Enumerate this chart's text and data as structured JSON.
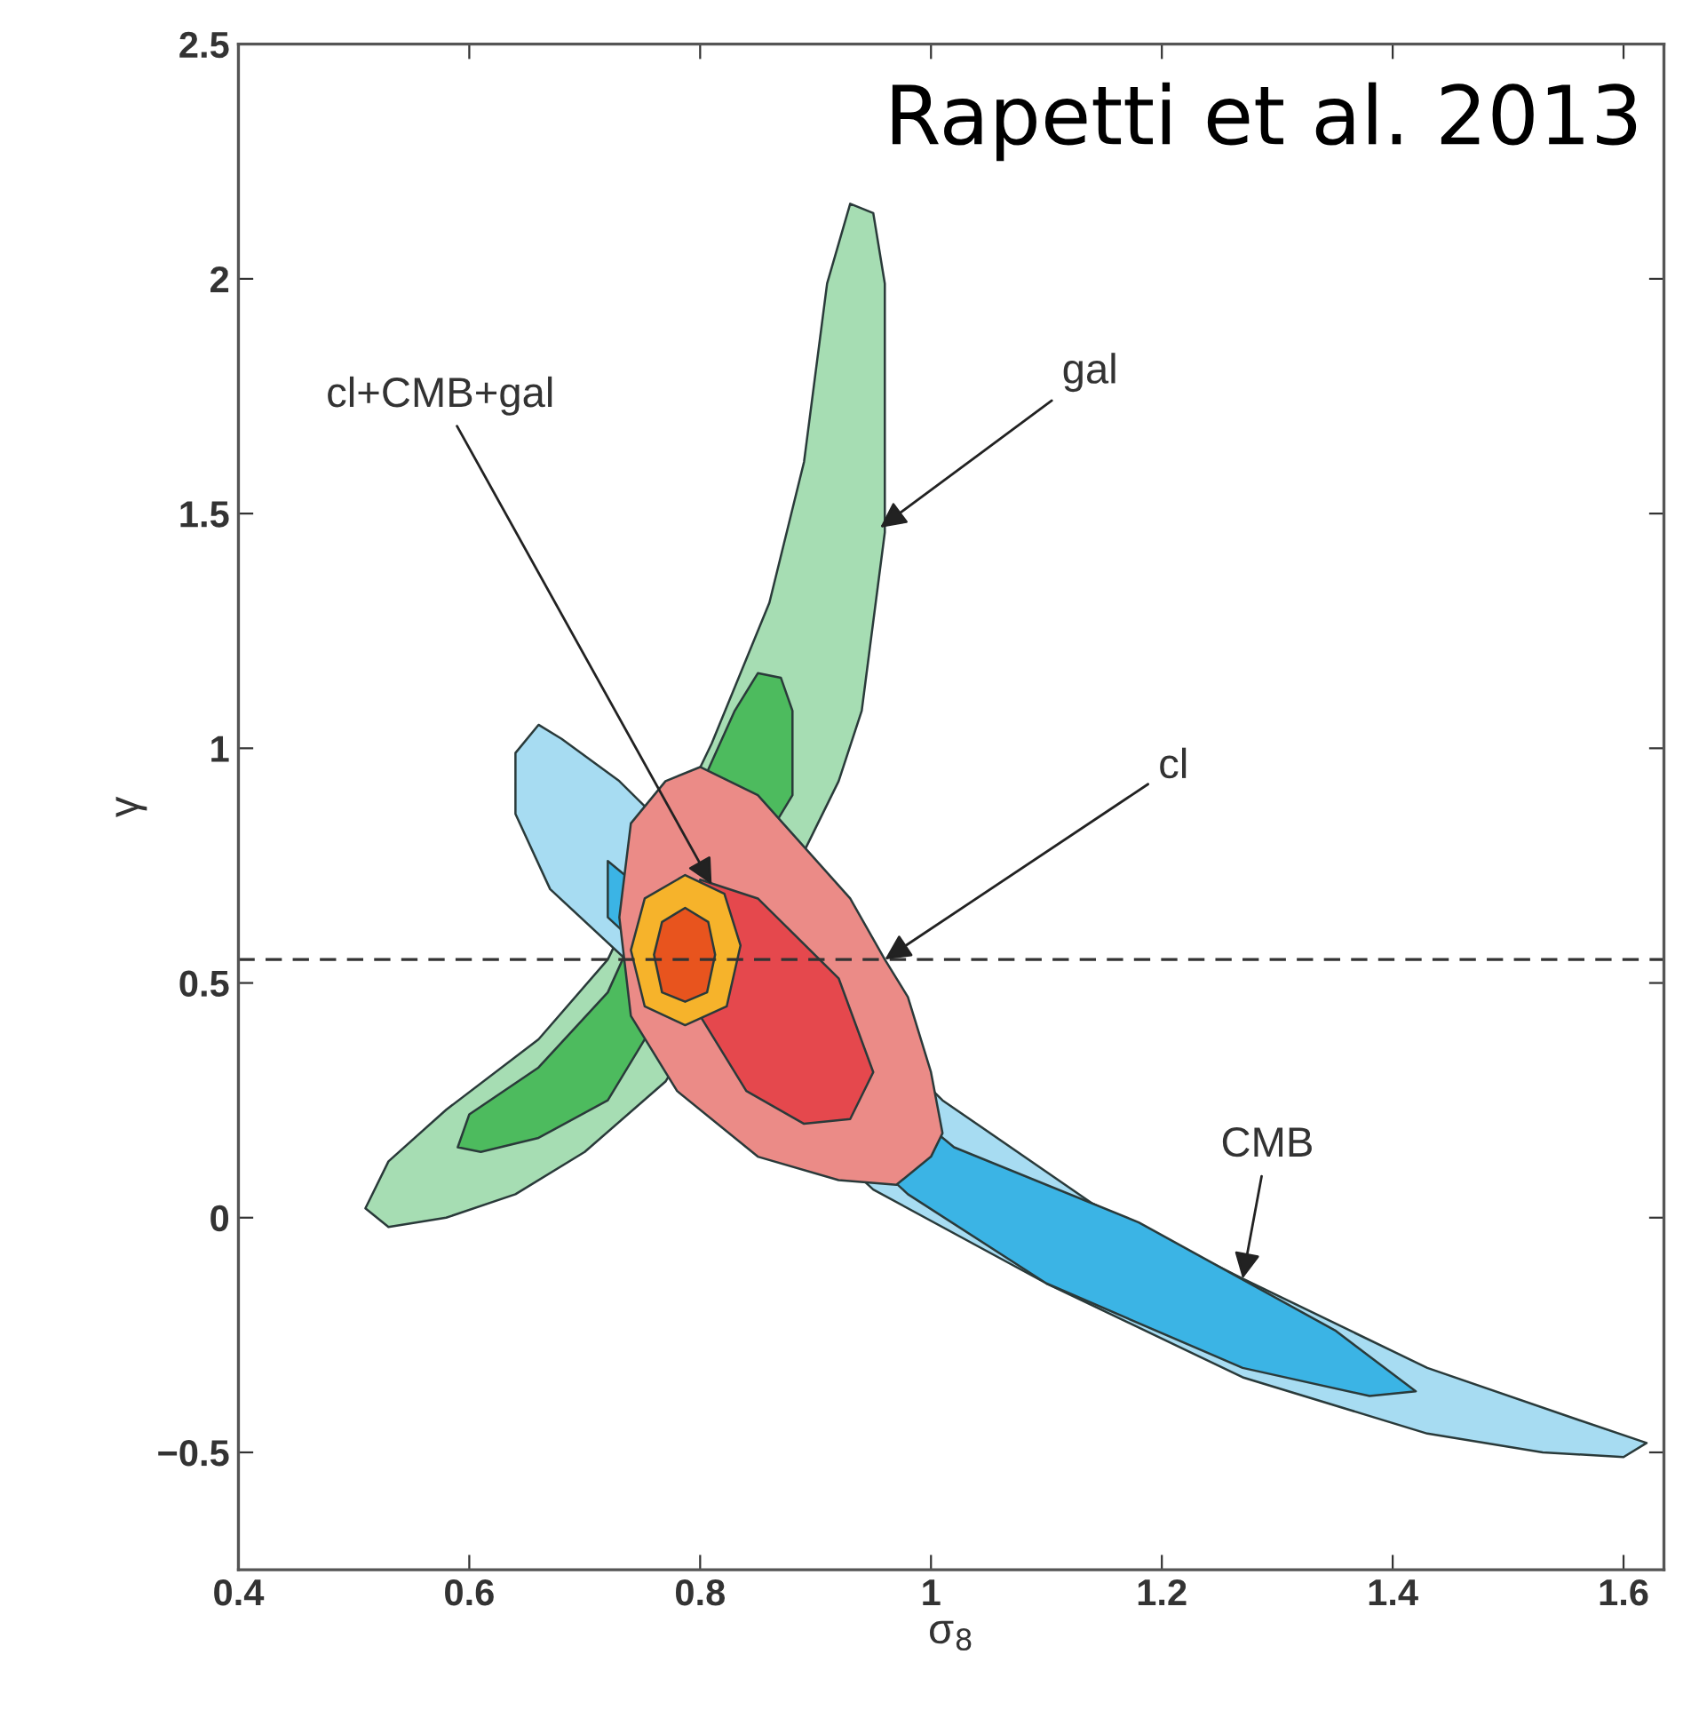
{
  "chart_data": {
    "type": "area",
    "xlabel": "σ$_{8}$",
    "ylabel": "γ",
    "xlim": [
      0.4,
      1.635
    ],
    "ylim": [
      -0.75,
      2.5
    ],
    "xticks": [
      0.4,
      0.6,
      0.8,
      1,
      1.2,
      1.4,
      1.6
    ],
    "yticks": [
      {
        "value": -0.5,
        "label": "−0.5"
      },
      0,
      0.5,
      1,
      1.5,
      2,
      2.5
    ],
    "grid": false,
    "legend": false,
    "series": [
      {
        "color": "#a6ddb3",
        "x": [
          0.93,
          0.95,
          0.96,
          0.96,
          0.96,
          0.95,
          0.94,
          0.92,
          0.89,
          null,
          null,
          0.77,
          0.7,
          0.64,
          0.58,
          0.53,
          0.51,
          0.53,
          0.58,
          0.66,
          0.72,
          null,
          0.81,
          0.86,
          0.89,
          0.91
        ],
        "values": [
          2.16,
          2.14,
          1.99,
          1.73,
          1.46,
          1.27,
          1.08,
          0.93,
          0.78,
          null,
          null,
          0.29,
          0.14,
          0.05,
          0.0,
          -0.02,
          0.02,
          0.12,
          0.23,
          0.38,
          0.55,
          null,
          1.01,
          1.31,
          1.61,
          1.99
        ]
      },
      {
        "color": "#4dbb5e",
        "x": [
          0.85,
          0.87,
          0.88,
          0.88,
          null,
          null,
          null,
          0.72,
          0.66,
          0.61,
          0.59,
          0.6,
          0.66,
          0.72,
          null,
          null,
          0.83
        ],
        "values": [
          1.16,
          1.15,
          1.08,
          0.9,
          null,
          null,
          null,
          0.25,
          0.17,
          0.14,
          0.15,
          0.22,
          0.32,
          0.48,
          null,
          null,
          1.08
        ]
      },
      {
        "color": "#a7dcf2",
        "x": [
          0.66,
          0.68,
          0.73,
          null,
          null,
          1.01,
          1.14,
          1.27,
          1.43,
          1.56,
          1.62,
          1.6,
          1.53,
          1.43,
          1.27,
          1.1,
          0.95,
          null,
          null,
          0.67,
          0.64,
          0.64
        ],
        "values": [
          1.05,
          1.02,
          0.93,
          null,
          null,
          0.25,
          0.03,
          -0.13,
          -0.32,
          -0.43,
          -0.48,
          -0.51,
          -0.5,
          -0.46,
          -0.34,
          -0.14,
          0.06,
          null,
          null,
          0.7,
          0.86,
          0.99
        ]
      },
      {
        "color": "#3bb4e5",
        "x": [
          0.72,
          null,
          1.02,
          1.18,
          1.35,
          1.42,
          1.38,
          1.27,
          1.1,
          0.98,
          null,
          0.72
        ],
        "values": [
          0.76,
          null,
          0.15,
          -0.01,
          -0.24,
          -0.37,
          -0.38,
          -0.32,
          -0.14,
          0.05,
          null,
          0.64
        ]
      },
      {
        "color": "#eb8b87",
        "x": [
          0.8,
          0.85,
          0.93,
          0.96,
          0.98,
          1.0,
          1.01,
          1.0,
          0.97,
          0.92,
          0.85,
          0.78,
          0.74,
          0.73,
          0.74,
          0.77
        ],
        "values": [
          0.96,
          0.9,
          0.68,
          0.55,
          0.47,
          0.31,
          0.18,
          0.13,
          0.07,
          0.08,
          0.13,
          0.27,
          0.43,
          0.64,
          0.84,
          0.93
        ]
      },
      {
        "color": "#e5484d",
        "x": [
          0.8,
          0.85,
          0.92,
          0.95,
          0.93,
          0.89,
          0.84,
          0.8,
          null,
          null
        ],
        "values": [
          0.72,
          0.68,
          0.51,
          0.31,
          0.21,
          0.2,
          0.27,
          0.43,
          null,
          null
        ]
      },
      {
        "color": "#f6b32b",
        "x": [
          0.787,
          0.821,
          0.835,
          0.823,
          0.787,
          0.752,
          0.74,
          0.752
        ],
        "values": [
          0.73,
          0.69,
          0.58,
          0.45,
          0.41,
          0.45,
          0.57,
          0.68
        ]
      },
      {
        "color": "#e8541e",
        "x": [
          0.787,
          0.807,
          0.813,
          0.806,
          0.787,
          0.767,
          0.76,
          0.767
        ],
        "values": [
          0.66,
          0.63,
          0.56,
          0.48,
          0.46,
          0.48,
          0.56,
          0.63
        ]
      }
    ],
    "ref_lines": [
      {
        "axis": "y",
        "value": 0.55,
        "color": "#333333",
        "line_style": "dashed"
      }
    ],
    "annotations": [
      {
        "text": "gal",
        "x": 0.956,
        "y": 1.47
      },
      {
        "text": "cl+CMB+gal",
        "x": 0.81,
        "y": 0.71
      },
      {
        "text": "cl",
        "x": 0.96,
        "y": 0.55
      },
      {
        "text": "CMB",
        "x": 1.27,
        "y": -0.13
      },
      "Rapetti et al. 2013"
    ]
  }
}
